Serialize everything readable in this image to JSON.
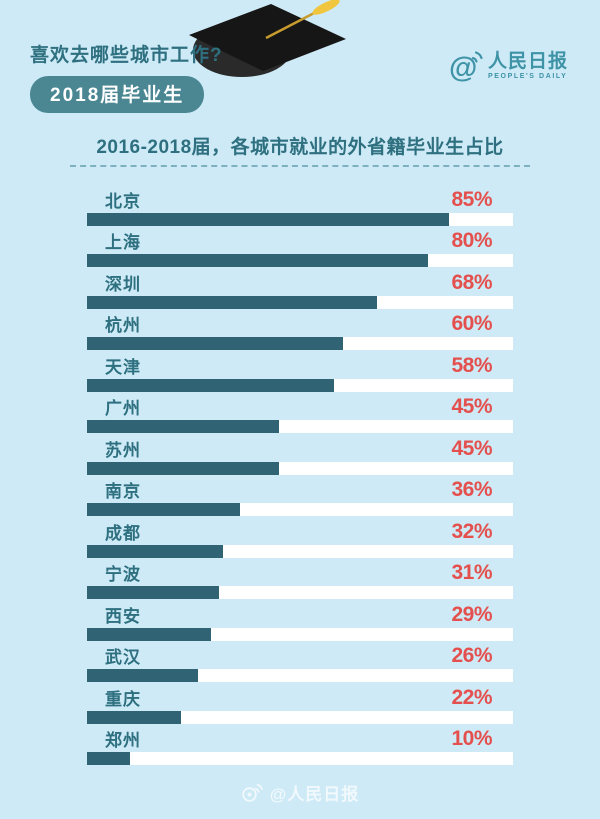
{
  "page": {
    "background_color": "#cdeaf6"
  },
  "colors": {
    "background": "#cdeaf6",
    "teal": "#2e7080",
    "bar": "#306374",
    "track": "#ffffff",
    "value_red": "#e4504d",
    "badge": "#4a8793",
    "logo": "#3e93a6"
  },
  "header": {
    "question": "喜欢去哪些城市工作?",
    "badge": "2018届毕业生"
  },
  "logo": {
    "at_symbol": "@",
    "name": "人民日报",
    "subtitle": "PEOPLE'S DAILY"
  },
  "chart_data": {
    "type": "bar",
    "orientation": "horizontal",
    "title": "2016-2018届，各城市就业的外省籍毕业生占比",
    "unit": "%",
    "xlim": [
      0,
      100
    ],
    "grid": false,
    "legend": "none",
    "value_label_position": "right-above-bar",
    "categories": [
      "北京",
      "上海",
      "深圳",
      "杭州",
      "天津",
      "广州",
      "苏州",
      "南京",
      "成都",
      "宁波",
      "西安",
      "武汉",
      "重庆",
      "郑州"
    ],
    "values": [
      85,
      80,
      68,
      60,
      58,
      45,
      45,
      36,
      32,
      31,
      29,
      26,
      22,
      10
    ]
  },
  "footer": {
    "watermark": "@人民日报"
  }
}
